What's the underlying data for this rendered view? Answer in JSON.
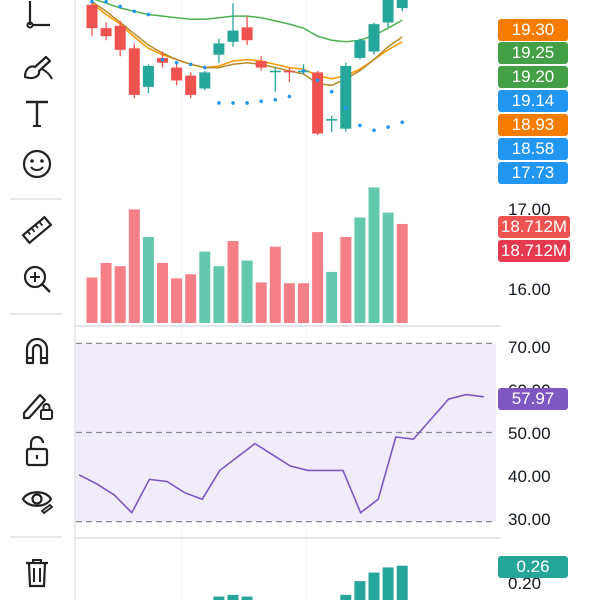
{
  "colors": {
    "up": "#26a69a",
    "down": "#ef5350",
    "volume_up": "#64c8ac",
    "volume_down": "#f57f86",
    "ma_fast": "#ff9800",
    "ma_slow": "#4caf50",
    "ma_mid": "#b58a2a",
    "psar": "#2196f3",
    "rsi_line": "#7e57c2",
    "rsi_band": "#f0ecfa",
    "macd_hist": "#26a69a",
    "grid": "#eef0f3"
  },
  "toolbar": {
    "items": [
      {
        "name": "trend-line-tool-icon",
        "interactable": true
      },
      {
        "name": "brush-tool-icon",
        "interactable": true
      },
      {
        "name": "text-tool-icon",
        "interactable": true
      },
      {
        "name": "emoji-tool-icon",
        "interactable": true
      },
      {
        "name": "ruler-tool-icon",
        "interactable": true
      },
      {
        "name": "zoom-in-tool-icon",
        "interactable": true
      },
      {
        "name": "magnet-tool-icon",
        "interactable": true
      },
      {
        "name": "lock-drawings-tool-icon",
        "interactable": true
      },
      {
        "name": "unlock-tool-icon",
        "interactable": true
      },
      {
        "name": "visibility-tool-icon",
        "interactable": true
      },
      {
        "name": "delete-tool-icon",
        "interactable": true
      }
    ]
  },
  "price_tags": [
    {
      "text": "19.30",
      "color": "#f57c00"
    },
    {
      "text": "19.25",
      "color": "#43a047"
    },
    {
      "text": "19.20",
      "color": "#43a047"
    },
    {
      "text": "19.14",
      "color": "#2196f3"
    },
    {
      "text": "18.93",
      "color": "#f57c00"
    },
    {
      "text": "18.58",
      "color": "#2196f3"
    },
    {
      "text": "17.73",
      "color": "#2196f3"
    }
  ],
  "volume_tags": [
    {
      "text": "18.712M",
      "color": "#ef5350"
    },
    {
      "text": "18.712M",
      "color": "#e53950"
    }
  ],
  "volume_axis_labels": [
    "17.00",
    "16.00"
  ],
  "rsi_axis_labels": [
    "70.00",
    "60.00",
    "50.00",
    "40.00",
    "30.00"
  ],
  "rsi_tag": {
    "text": "57.97",
    "color": "#7e57c2"
  },
  "macd_tag": {
    "text": "0.26",
    "color": "#26a69a"
  },
  "macd_axis_labels": [
    "0.20"
  ],
  "chart_data": [
    {
      "type": "candlestick",
      "panel": "price",
      "ylim": [
        17.6,
        19.9
      ],
      "candles": [
        {
          "o": 19.84,
          "h": 19.9,
          "l": 19.45,
          "c": 19.55
        },
        {
          "o": 19.55,
          "h": 19.62,
          "l": 19.4,
          "c": 19.45
        },
        {
          "o": 19.58,
          "h": 19.64,
          "l": 19.2,
          "c": 19.28
        },
        {
          "o": 19.3,
          "h": 19.36,
          "l": 18.68,
          "c": 18.72
        },
        {
          "o": 18.82,
          "h": 19.1,
          "l": 18.74,
          "c": 19.08
        },
        {
          "o": 19.18,
          "h": 19.26,
          "l": 19.06,
          "c": 19.12
        },
        {
          "o": 19.06,
          "h": 19.14,
          "l": 18.84,
          "c": 18.9
        },
        {
          "o": 18.96,
          "h": 19.0,
          "l": 18.68,
          "c": 18.72
        },
        {
          "o": 18.8,
          "h": 19.02,
          "l": 18.78,
          "c": 19.0
        },
        {
          "o": 19.22,
          "h": 19.42,
          "l": 19.12,
          "c": 19.36
        },
        {
          "o": 19.38,
          "h": 19.86,
          "l": 19.32,
          "c": 19.52
        },
        {
          "o": 19.56,
          "h": 19.7,
          "l": 19.34,
          "c": 19.4
        },
        {
          "o": 19.14,
          "h": 19.2,
          "l": 19.02,
          "c": 19.06
        },
        {
          "o": 19.02,
          "h": 19.06,
          "l": 18.76,
          "c": 19.02
        },
        {
          "o": 19.02,
          "h": 19.06,
          "l": 18.88,
          "c": 19.0
        },
        {
          "o": 19.02,
          "h": 19.1,
          "l": 18.98,
          "c": 19.02
        },
        {
          "o": 19.0,
          "h": 19.02,
          "l": 18.22,
          "c": 18.24
        },
        {
          "o": 18.4,
          "h": 18.46,
          "l": 18.26,
          "c": 18.42
        },
        {
          "o": 18.3,
          "h": 19.12,
          "l": 18.26,
          "c": 19.08
        },
        {
          "o": 19.18,
          "h": 19.42,
          "l": 19.16,
          "c": 19.4
        },
        {
          "o": 19.26,
          "h": 19.62,
          "l": 19.22,
          "c": 19.6
        },
        {
          "o": 19.62,
          "h": 19.96,
          "l": 19.56,
          "c": 19.92
        },
        {
          "o": 19.8,
          "h": 19.96,
          "l": 19.76,
          "c": 19.92
        }
      ],
      "overlays": [
        {
          "name": "",
          "color": "#4caf50",
          "values": [
            19.92,
            19.86,
            19.8,
            19.76,
            19.72,
            19.7,
            19.68,
            19.66,
            19.66,
            19.68,
            19.7,
            19.7,
            19.68,
            19.64,
            19.6,
            19.55,
            19.45,
            19.4,
            19.38,
            19.4,
            19.46,
            19.55,
            19.65
          ]
        },
        {
          "name": "",
          "color": "#ff9800",
          "values": [
            19.86,
            19.72,
            19.6,
            19.44,
            19.3,
            19.22,
            19.16,
            19.1,
            19.06,
            19.08,
            19.14,
            19.16,
            19.14,
            19.1,
            19.06,
            19.04,
            18.96,
            18.92,
            18.96,
            19.04,
            19.16,
            19.28,
            19.38
          ]
        },
        {
          "name": "",
          "color": "#b58a2a",
          "values": [
            19.88,
            19.76,
            19.62,
            19.48,
            19.34,
            19.24,
            19.16,
            19.1,
            19.06,
            19.06,
            19.1,
            19.12,
            19.1,
            19.06,
            19.02,
            18.98,
            18.86,
            18.84,
            18.92,
            19.02,
            19.16,
            19.32,
            19.44
          ]
        }
      ],
      "psar": [
        19.88,
        19.88,
        19.82,
        19.76,
        19.72,
        19.16,
        19.12,
        19.1,
        19.06,
        18.62,
        18.62,
        18.62,
        18.64,
        18.66,
        18.7,
        19.02,
        18.9,
        18.76,
        18.56,
        18.34,
        18.28,
        18.32,
        18.38
      ]
    },
    {
      "type": "bar",
      "panel": "volume",
      "ylim": [
        0,
        1.7
      ],
      "values": [
        0.56,
        0.74,
        0.7,
        1.4,
        1.06,
        0.74,
        0.55,
        0.6,
        0.88,
        0.7,
        1.01,
        0.77,
        0.5,
        0.94,
        0.49,
        0.49,
        1.12,
        0.63,
        1.06,
        1.3,
        1.67,
        1.36,
        1.22
      ],
      "direction": [
        "down",
        "down",
        "down",
        "down",
        "up",
        "down",
        "down",
        "down",
        "up",
        "up",
        "down",
        "up",
        "down",
        "down",
        "down",
        "down",
        "down",
        "up",
        "down",
        "up",
        "up",
        "up",
        "down"
      ]
    },
    {
      "type": "line",
      "panel": "rsi",
      "ylim": [
        27,
        73
      ],
      "band": [
        30,
        70
      ],
      "levels": [
        30,
        50,
        70
      ],
      "values": [
        40.5,
        38.5,
        36.0,
        32.0,
        39.5,
        39.0,
        36.5,
        35.0,
        41.5,
        44.5,
        47.5,
        45.0,
        42.5,
        41.5,
        41.5,
        41.5,
        32.0,
        35.0,
        49.0,
        48.5,
        53.0,
        57.5,
        58.5,
        58.0
      ]
    },
    {
      "type": "bar",
      "panel": "macd",
      "ylim": [
        0,
        0.35
      ],
      "values": [
        0,
        0,
        0,
        0,
        0,
        0,
        0,
        0,
        0,
        0.02,
        0.03,
        0.02,
        0,
        0,
        0,
        0,
        0,
        0,
        0.03,
        0.11,
        0.16,
        0.19,
        0.2
      ]
    }
  ]
}
